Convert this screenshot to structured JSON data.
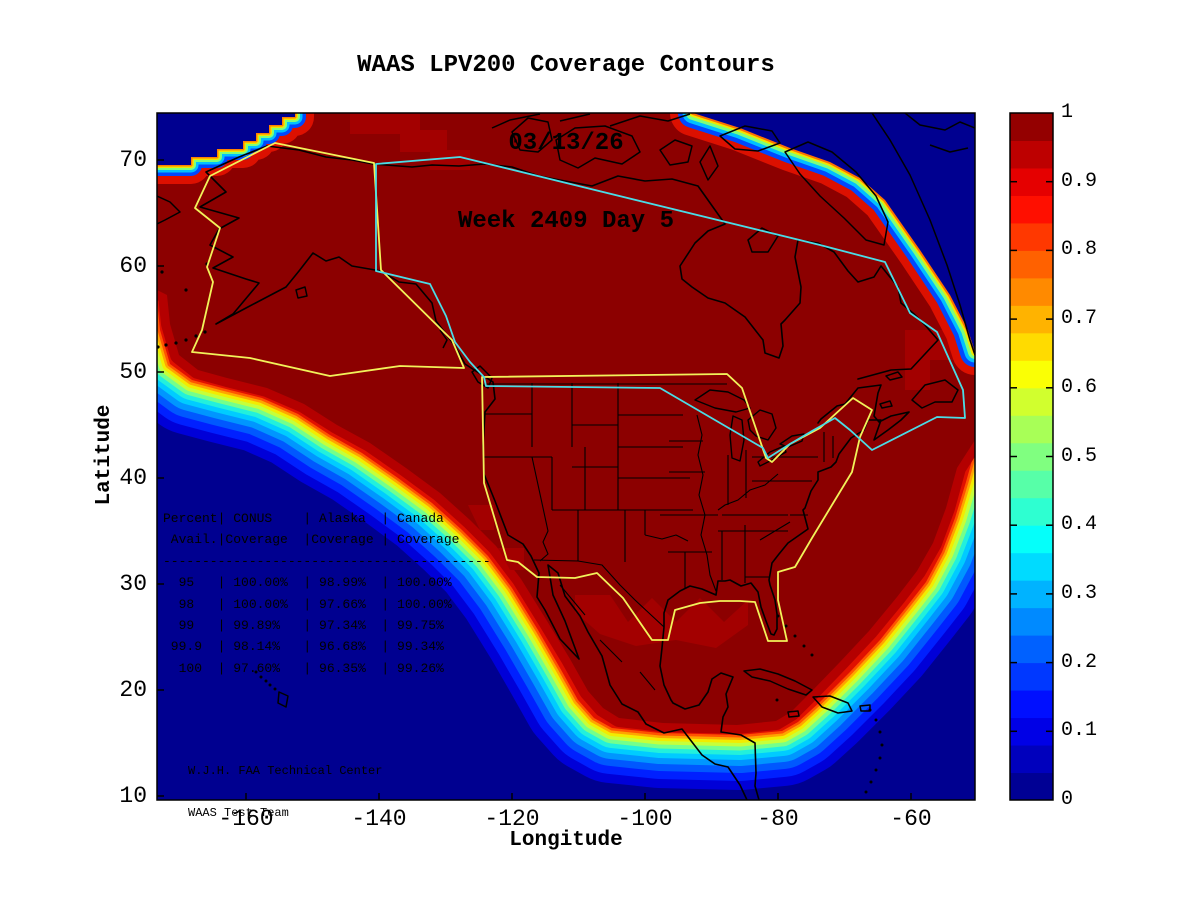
{
  "title": {
    "line1": "WAAS LPV200 Coverage Contours",
    "line2": "03/13/26",
    "line3": "Week 2409 Day 5"
  },
  "axes": {
    "xlabel": "Longitude",
    "ylabel": "Latitude",
    "x_tick_labels": [
      "-160",
      "-140",
      "-120",
      "-100",
      "-80",
      "-60"
    ],
    "y_tick_labels": [
      "70",
      "60",
      "50",
      "40",
      "30",
      "20",
      "10"
    ]
  },
  "colorbar": {
    "min": 0,
    "max": 1,
    "tick_labels": [
      "1",
      "0.9",
      "0.8",
      "0.7",
      "0.6",
      "0.5",
      "0.4",
      "0.3",
      "0.2",
      "0.1",
      "0"
    ],
    "colormap": "jet"
  },
  "coverage_table": {
    "columns": [
      "Percent Avail.",
      "CONUS Coverage",
      "Alaska Coverage",
      "Canada Coverage"
    ],
    "rows": [
      [
        "95",
        "100.00%",
        "98.99%",
        "100.00%"
      ],
      [
        "98",
        "100.00%",
        "97.66%",
        "100.00%"
      ],
      [
        "99",
        "99.89%",
        "97.34%",
        "99.75%"
      ],
      [
        "99.9",
        "98.14%",
        "96.68%",
        "99.34%"
      ],
      [
        "100",
        "97.60%",
        "96.35%",
        "99.26%"
      ]
    ],
    "display_lines": [
      "Percent| CONUS    | Alaska  | Canada",
      " Avail.|Coverage  |Coverage | Coverage",
      "------------------------------------------",
      "  95   | 100.00%  | 98.99%  | 100.00%",
      "  98   | 100.00%  | 97.66%  | 100.00%",
      "  99   | 99.89%   | 97.34%  | 99.75%",
      " 99.9  | 98.14%   | 96.68%  | 99.34%",
      "  100  | 97.60%   | 96.35%  | 99.26%"
    ]
  },
  "annotation": {
    "line1": "W.J.H. FAA Technical Center",
    "line2": "WAAS Test Team"
  },
  "colors": {
    "ocean_low_coverage": "#000090",
    "core_high_coverage": "#8C0000",
    "bright_red_band": "#E01000",
    "conus_alaska_boundary_yellow": "#F2F25A",
    "canada_boundary_cyan": "#4ADCE6",
    "coastline": "#000000",
    "text": "#000000"
  },
  "chart_data": {
    "type": "heatmap",
    "title": "WAAS LPV200 Coverage Contours",
    "date": "03/13/26",
    "gps_week_day": "Week 2409 Day 5",
    "xlabel": "Longitude",
    "ylabel": "Latitude",
    "xlim": [
      -173.4,
      -50.4
    ],
    "ylim": [
      10,
      74.4
    ],
    "x_ticks": [
      -160,
      -140,
      -120,
      -100,
      -80,
      -60
    ],
    "y_ticks": [
      70,
      60,
      50,
      40,
      30,
      20,
      10
    ],
    "colorbar": {
      "range": [
        0,
        1
      ],
      "ticks": [
        1,
        0.9,
        0.8,
        0.7,
        0.6,
        0.5,
        0.4,
        0.3,
        0.2,
        0.1,
        0
      ],
      "colormap": "jet",
      "position": "right"
    },
    "values_semantics": "LPV200 coverage availability fraction (0=dark blue to 1=dark red, jet colormap); near 1.0 over CONUS, Alaska and Canada, falling through a rainbow contour band to 0 over the Pacific southwest, south of ~16N latitude, and the far northeast/northwest corners",
    "overlays": [
      "black coastlines of North America with US state boundaries",
      "yellow CONUS and Alaska service boundary polygons",
      "cyan Canada boundary polygon"
    ],
    "table": {
      "columns": [
        "Percent Avail.",
        "CONUS Coverage",
        "Alaska Coverage",
        "Canada Coverage"
      ],
      "rows": [
        [
          95,
          "100.00%",
          "98.99%",
          "100.00%"
        ],
        [
          98,
          "100.00%",
          "97.66%",
          "100.00%"
        ],
        [
          99,
          "99.89%",
          "97.34%",
          "99.75%"
        ],
        [
          99.9,
          "98.14%",
          "96.68%",
          "99.34%"
        ],
        [
          100,
          "97.60%",
          "96.35%",
          "99.26%"
        ]
      ]
    },
    "credit": [
      "W.J.H. FAA Technical Center",
      "WAAS Test Team"
    ]
  }
}
